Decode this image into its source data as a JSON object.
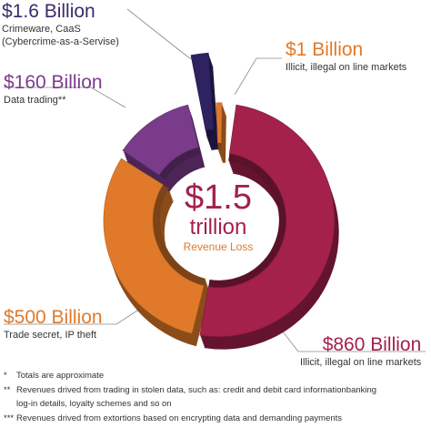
{
  "chart_data": {
    "type": "pie",
    "style": "3d-donut",
    "center": {
      "amount": "$1.5",
      "unit": "trillion",
      "subtitle": "Revenue Loss"
    },
    "slices": [
      {
        "label": "$860 Billion",
        "description": "Illicit, illegal on line markets",
        "value": 860,
        "color": "#a3214b"
      },
      {
        "label": "$500 Billion",
        "description": "Trade secret, IP theft",
        "value": 500,
        "color": "#e07a2a"
      },
      {
        "label": "$160 Billion",
        "description": "Data trading**",
        "value": 160,
        "color": "#7a3b8a"
      },
      {
        "label": "$1.6 Billion",
        "description": "Crimeware, CaaS (Cybercrime-as-a-Servise)",
        "value": 1.6,
        "color": "#2e2260"
      },
      {
        "label": "$1 Billion",
        "description": "Illicit, illegal on line markets",
        "value": 1,
        "color": "#e07a2a"
      }
    ]
  },
  "labels": {
    "crimeware_amount": "$1.6 Billion",
    "crimeware_line1": "Crimeware, CaaS",
    "crimeware_line2": "(Cybercrime-as-a-Servise)",
    "illicit_small_amount": "$1 Billion",
    "illicit_small_desc": "Illicit, illegal on line markets",
    "data_amount": "$160 Billion",
    "data_desc": "Data trading**",
    "trade_amount": "$500 Billion",
    "trade_desc": "Trade secret, IP theft",
    "illicit_big_amount": "$860 Billion",
    "illicit_big_desc": "Illicit, illegal on line markets"
  },
  "notes": {
    "n1_mark": "*",
    "n1_text": "Totals are approximate",
    "n2_mark": "**",
    "n2_text": "Revenues drived from trading in stolen data, such as: credit and debit card informationbanking",
    "n2_cont": "log-in details, loyalty schemes and so on",
    "n3_mark": "***",
    "n3_text": "Revenues drived from extortions based on encrypting data and demanding payments"
  }
}
